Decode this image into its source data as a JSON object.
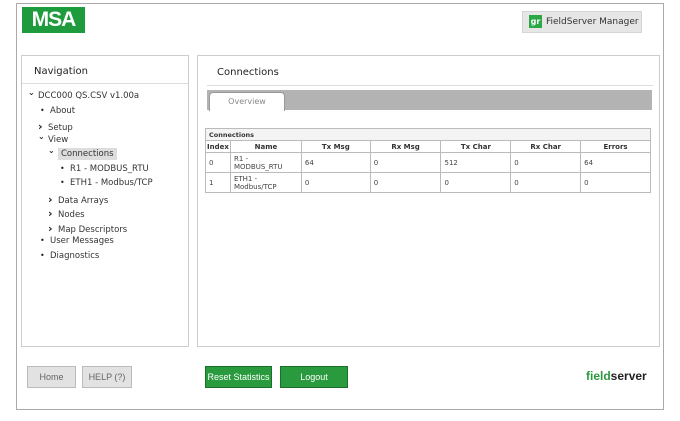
{
  "header": {
    "logo": "MSA",
    "manager_icon": "gr",
    "manager_label": "FieldServer Manager"
  },
  "nav": {
    "title": "Navigation",
    "items": [
      {
        "label": "DCC000 QS.CSV v1.00a",
        "icon": "chevron-down"
      },
      {
        "label": "About",
        "icon": "bullet"
      },
      {
        "label": "Setup",
        "icon": "chevron-right"
      },
      {
        "label": "View",
        "icon": "chevron-down"
      },
      {
        "label": "Connections",
        "icon": "chevron-down",
        "selected": true
      },
      {
        "label": "R1 - MODBUS_RTU",
        "icon": "bullet"
      },
      {
        "label": "ETH1 - Modbus/TCP",
        "icon": "bullet"
      },
      {
        "label": "Data Arrays",
        "icon": "chevron-right"
      },
      {
        "label": "Nodes",
        "icon": "chevron-right"
      },
      {
        "label": "Map Descriptors",
        "icon": "chevron-right"
      },
      {
        "label": "User Messages",
        "icon": "bullet"
      },
      {
        "label": "Diagnostics",
        "icon": "bullet"
      }
    ]
  },
  "main": {
    "title": "Connections",
    "tab": "Overview",
    "table": {
      "caption": "Connections",
      "columns": [
        "Index",
        "Name",
        "Tx Msg",
        "Rx Msg",
        "Tx Char",
        "Rx Char",
        "Errors"
      ],
      "rows": [
        [
          "0",
          "R1 - MODBUS_RTU",
          "64",
          "0",
          "512",
          "0",
          "64"
        ],
        [
          "1",
          "ETH1 - Modbus/TCP",
          "0",
          "0",
          "0",
          "0",
          "0"
        ]
      ]
    }
  },
  "footer": {
    "home": "Home",
    "help": "HELP (?)",
    "reset": "Reset Statistics",
    "logout": "Logout",
    "brand_a": "field",
    "brand_b": "server"
  },
  "colors": {
    "brand_green": "#2a9a3e"
  }
}
